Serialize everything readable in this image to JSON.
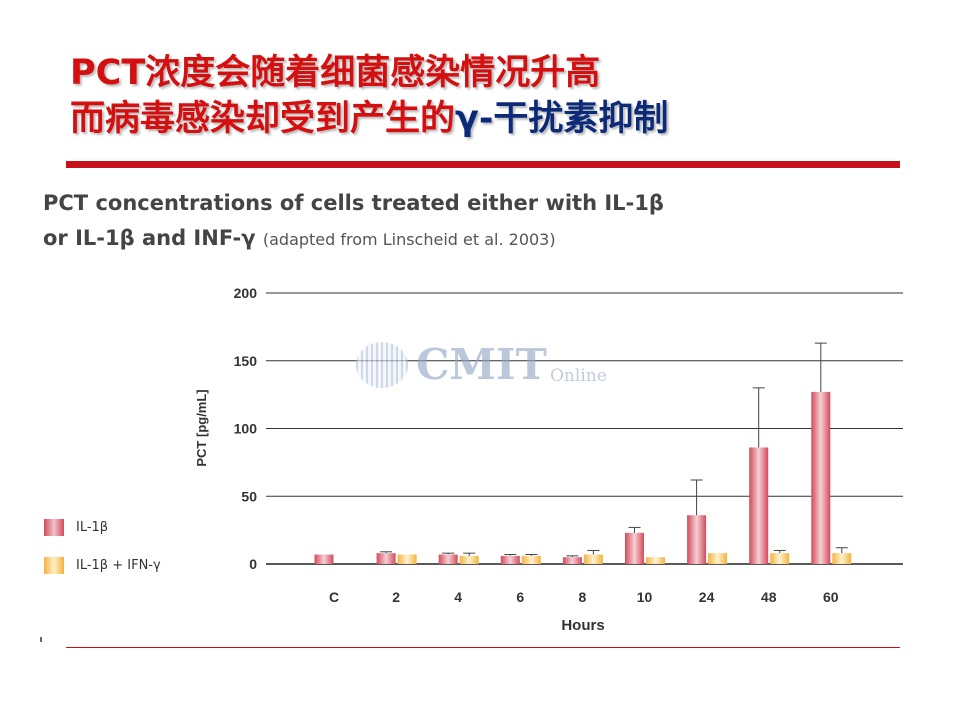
{
  "slide": {
    "title_line1": "PCT浓度会随着细菌感染情况升高",
    "title_line2_a": "而病毒感染却受到产生的",
    "title_line2_b": "γ-干扰素抑制"
  },
  "figure": {
    "title_line1": "PCT concentrations of cells treated either with IL-1β",
    "title_line2": "or IL-1β and INF-γ",
    "title_note": "(adapted from Linscheid et al. 2003)"
  },
  "watermark": {
    "name": "CMIT",
    "suffix": "Online"
  },
  "colors": {
    "title_red": "#d50f0f",
    "title_blue": "#0c2a78",
    "rule_red": "#c8101a",
    "bar_red": "#d34a5a",
    "bar_yellow": "#f2b240"
  },
  "chart_data": {
    "type": "bar",
    "xlabel": "Hours",
    "ylabel": "PCT [pg/mL]",
    "categories": [
      "C",
      "2",
      "4",
      "6",
      "8",
      "10",
      "24",
      "48",
      "60"
    ],
    "ylim": [
      0,
      200
    ],
    "yticks": [
      0,
      50,
      100,
      150,
      200
    ],
    "grid": true,
    "legend_position": "left",
    "series": [
      {
        "name": "IL-1β",
        "color": "#d34a5a",
        "values": [
          7,
          8,
          7,
          6,
          5,
          23,
          36,
          86,
          127
        ],
        "errors": [
          0,
          1,
          1,
          1,
          1,
          4,
          26,
          44,
          36
        ]
      },
      {
        "name": "IL-1β + IFN-γ",
        "color": "#f2b240",
        "values": [
          null,
          7,
          6,
          6,
          7,
          5,
          8,
          8,
          8
        ],
        "errors": [
          0,
          0,
          2,
          1,
          3,
          0,
          0,
          2,
          4
        ]
      }
    ]
  }
}
